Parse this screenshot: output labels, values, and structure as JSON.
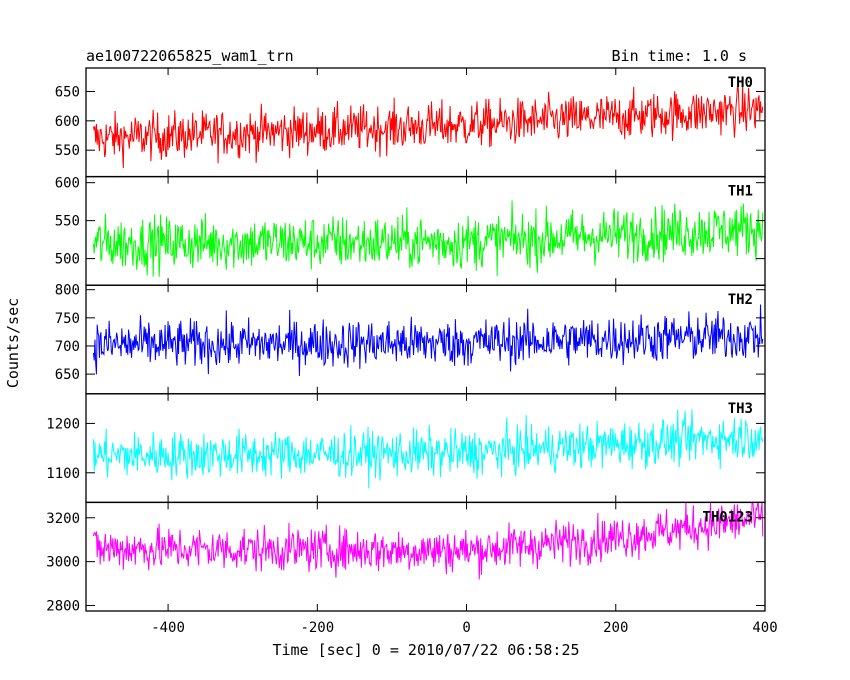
{
  "chart_data": {
    "type": "line",
    "title": "ae100722065825_wam1_trn",
    "subtitle": "Bin time: 1.0 s",
    "xlabel": "Time [sec] 0 = 2010/07/22 06:58:25",
    "ylabel": "Counts/sec",
    "xlim": [
      -510,
      400
    ],
    "x_ticks": [
      "-400",
      "-200",
      "0",
      "200",
      "400"
    ],
    "x_tick_values": [
      -400,
      -200,
      0,
      200,
      400
    ],
    "x_range": [
      -500,
      397
    ],
    "bin_time_s": 1.0,
    "panels": [
      {
        "name": "TH0",
        "color": "#ff0000",
        "ylim": [
          505,
          690
        ],
        "y_ticks": [
          "550",
          "600",
          "650"
        ],
        "y_tick_values": [
          550,
          600,
          650
        ],
        "trend": {
          "x": [
            -500,
            0,
            397
          ],
          "y": [
            570,
            593,
            620
          ]
        },
        "scatter": 28
      },
      {
        "name": "TH1",
        "color": "#00ff00",
        "ylim": [
          465,
          608
        ],
        "y_ticks": [
          "500",
          "550",
          "600"
        ],
        "y_tick_values": [
          500,
          550,
          600
        ],
        "trend": {
          "x": [
            -500,
            0,
            397
          ],
          "y": [
            520,
            522,
            540
          ]
        },
        "scatter": 25
      },
      {
        "name": "TH2",
        "color": "#0000ff",
        "ylim": [
          615,
          808
        ],
        "y_ticks": [
          "650",
          "700",
          "750",
          "800"
        ],
        "y_tick_values": [
          650,
          700,
          750,
          800
        ],
        "trend": {
          "x": [
            -500,
            0,
            397
          ],
          "y": [
            702,
            706,
            718
          ]
        },
        "scatter": 30
      },
      {
        "name": "TH3",
        "color": "#00ffff",
        "ylim": [
          1040,
          1260
        ],
        "y_ticks": [
          "1100",
          "1200"
        ],
        "y_tick_values": [
          1100,
          1200
        ],
        "trend": {
          "x": [
            -500,
            0,
            397
          ],
          "y": [
            1135,
            1140,
            1175
          ]
        },
        "scatter": 33
      },
      {
        "name": "TH0123",
        "color": "#ff00ff",
        "ylim": [
          2775,
          3270
        ],
        "y_ticks": [
          "2800",
          "3000",
          "3200"
        ],
        "y_tick_values": [
          2800,
          3000,
          3200
        ],
        "trend": {
          "x": [
            -500,
            0,
            200,
            397
          ],
          "y": [
            3060,
            3050,
            3110,
            3200
          ]
        },
        "scatter": 70
      }
    ]
  }
}
